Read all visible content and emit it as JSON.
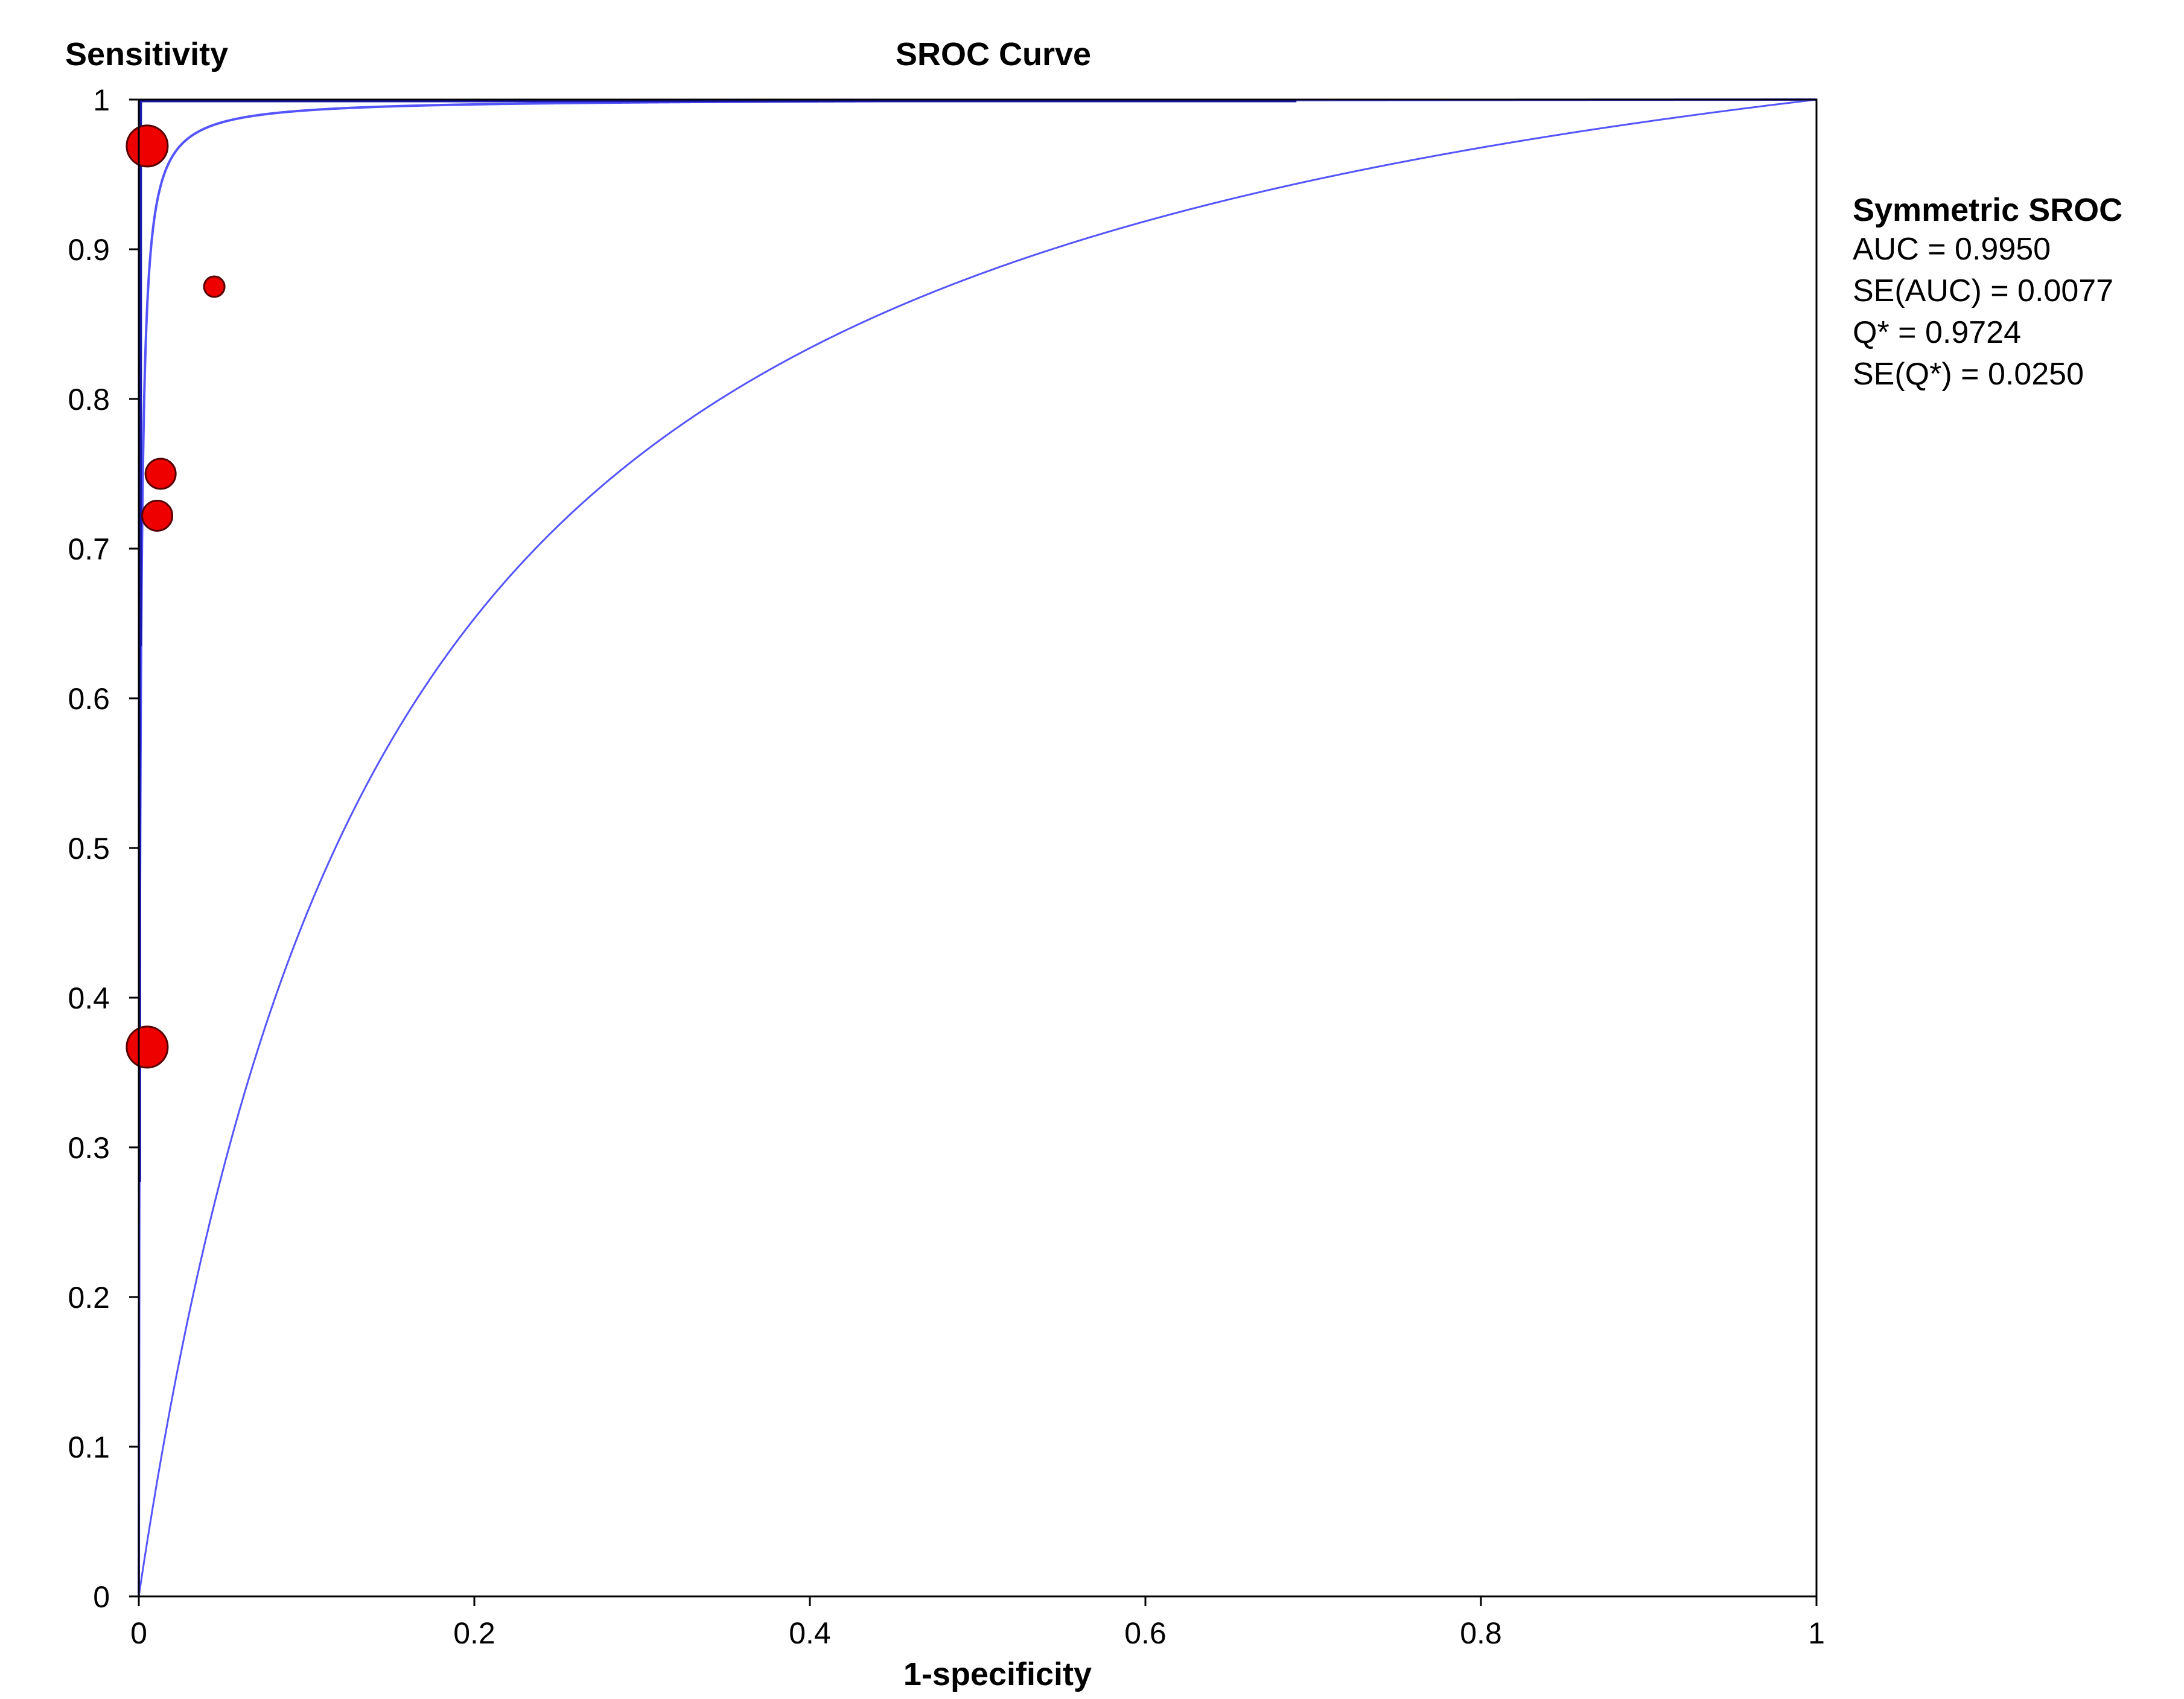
{
  "chart_data": {
    "type": "scatter",
    "title": "SROC Curve",
    "xlabel": "1-specificity",
    "ylabel": "Sensitivity",
    "xlim": [
      0,
      1
    ],
    "ylim": [
      0,
      1
    ],
    "grid": false,
    "x_ticks": [
      0,
      0.2,
      0.4,
      0.6,
      0.8,
      1
    ],
    "x_tick_labels": [
      "0",
      "0.2",
      "0.4",
      "0.6",
      "0.8",
      "1"
    ],
    "y_ticks": [
      0,
      0.1,
      0.2,
      0.3,
      0.4,
      0.5,
      0.6,
      0.7,
      0.8,
      0.9,
      1
    ],
    "y_tick_labels": [
      "0",
      "0.1",
      "0.2",
      "0.3",
      "0.4",
      "0.5",
      "0.6",
      "0.7",
      "0.8",
      "0.9",
      "1"
    ],
    "studies": [
      {
        "x": 0.005,
        "y": 0.969,
        "weight": "large"
      },
      {
        "x": 0.045,
        "y": 0.875,
        "weight": "small"
      },
      {
        "x": 0.013,
        "y": 0.75,
        "weight": "medium"
      },
      {
        "x": 0.011,
        "y": 0.722,
        "weight": "medium"
      },
      {
        "x": 0.005,
        "y": 0.367,
        "weight": "large"
      }
    ],
    "study_cis": [
      {
        "x": 0.001,
        "y_low": 0.635,
        "y_high": 1.0
      },
      {
        "x": 0.0005,
        "y_low": 0.277,
        "y_high": 1.0
      }
    ],
    "top_ci_line": {
      "x_from": 0.0,
      "x_to": 0.69,
      "y": 1.0
    },
    "sroc_curve": {
      "name": "Symmetric SROC",
      "q_star": 0.9724
    },
    "lower_curve_q_star": 0.733,
    "colors": {
      "points": "#ee0000",
      "points_stroke": "#550000",
      "curve": "#5555ff",
      "ci": "#1a1aaa",
      "axis": "#000000"
    },
    "legend": {
      "placement": "right",
      "title": "Symmetric SROC",
      "lines": [
        "AUC = 0.9950",
        "SE(AUC) = 0.0077",
        "Q* = 0.9724",
        "SE(Q*) = 0.0250"
      ]
    }
  }
}
